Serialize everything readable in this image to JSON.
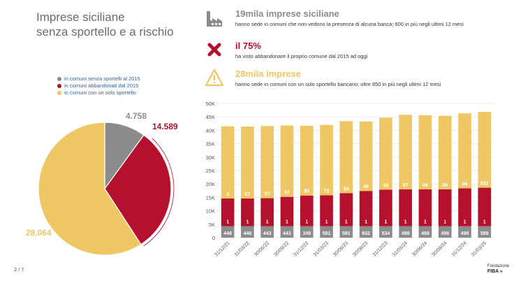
{
  "title_line1": "Imprese siciliane",
  "title_line2": "senza sportello e a rischio",
  "legend": [
    {
      "label": "in comuni senza sportelli al 2015",
      "color": "#8c8c8c"
    },
    {
      "label": "in comuni abbandonati dal 2015",
      "color": "#b5102d"
    },
    {
      "label": "in comuni con un solo sportello",
      "color": "#efc765"
    }
  ],
  "stats": [
    {
      "icon": "factory-icon",
      "headline": "19mila imprese siciliane",
      "headline_color": "#8c8c8c",
      "text": "hanno sede in comuni che non vedono la presenza di alcuna banca; 600 in più negli ultimi 12 mesi"
    },
    {
      "icon": "close-x-icon",
      "headline": "il 75%",
      "headline_color": "#b5102d",
      "text": "ha visto abbandonare il proprio comune dal 2015 ad oggi"
    },
    {
      "icon": "warning-icon",
      "headline": "28mila imprese",
      "headline_color": "#efc765",
      "text": "hanno sede in comuni con un solo sportello bancario; oltre 850 in più negli ultimi 12 mesi"
    }
  ],
  "pager": "2 / 7",
  "logo_small": "Fondazione",
  "logo_big": "FIBA",
  "chart_data": [
    {
      "type": "pie",
      "slices": [
        {
          "name": "in comuni senza sportelli al 2015",
          "value": 4758,
          "label": "4.758",
          "color": "#8c8c8c"
        },
        {
          "name": "in comuni abbandonati dal 2015",
          "value": 14589,
          "label": "14.589",
          "color": "#b5102d"
        },
        {
          "name": "in comuni con un solo sportello",
          "value": 28064,
          "label": "28.064",
          "color": "#efc765"
        }
      ]
    },
    {
      "type": "bar",
      "stacked": true,
      "categories": [
        "31/12/21",
        "31/03/22",
        "30/06/22",
        "30/09/22",
        "31/12/22",
        "31/03/23",
        "30/06/23",
        "30/09/23",
        "31/12/23",
        "31/03/24",
        "30/06/24",
        "30/09/24",
        "31/12/24",
        "31/03/25"
      ],
      "ylim": [
        0,
        50000
      ],
      "yticks": [
        0,
        5000,
        10000,
        15000,
        20000,
        25000,
        30000,
        35000,
        40000,
        45000,
        50000
      ],
      "ytick_labels": [
        "0",
        "5K",
        "10K",
        "15K",
        "20K",
        "25K",
        "30K",
        "35K",
        "40K",
        "45K",
        "50K"
      ],
      "series": [
        {
          "name": "in comuni senza sportelli al 2015",
          "color": "#8c8c8c",
          "values": [
            4300,
            4300,
            4300,
            4300,
            4300,
            4300,
            4300,
            4300,
            4300,
            4300,
            4300,
            4300,
            4300,
            4300
          ],
          "labels": [
            "448",
            "448",
            "443",
            "443",
            "349",
            "581",
            "581",
            "602",
            "534",
            "498",
            "498",
            "498",
            "498",
            "589"
          ]
        },
        {
          "name": "in comuni abbandonati dal 2015",
          "color": "#b5102d",
          "values": [
            10300,
            10300,
            10400,
            10900,
            11400,
            11500,
            12300,
            13100,
            13600,
            13700,
            13700,
            13700,
            14100,
            14300
          ],
          "labels": [
            "1",
            "1",
            "1",
            "1",
            "1",
            "1",
            "1",
            "1",
            "1",
            "1",
            "1",
            "1",
            "1",
            "1"
          ]
        },
        {
          "name": "in comuni con un solo sportello",
          "color": "#efc765",
          "values": [
            26900,
            26800,
            26900,
            26600,
            26000,
            26200,
            26800,
            25900,
            26800,
            27800,
            27600,
            27400,
            27900,
            28300
          ],
          "labels": [
            "2",
            "57",
            "57",
            "57",
            "85",
            "72",
            "94",
            "40",
            "08",
            "87",
            "06",
            "06",
            "06",
            "832"
          ]
        }
      ]
    }
  ]
}
